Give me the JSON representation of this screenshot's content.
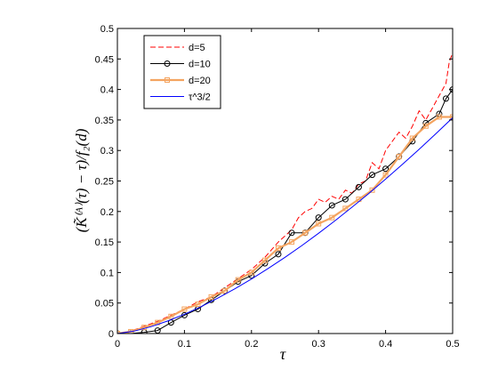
{
  "chart_data": {
    "type": "line",
    "title": "",
    "xlabel": "τ",
    "ylabel": "(K̃⁽ᴬ⁾(τ) − τ)/f₂(d)",
    "xlim": [
      0,
      0.5
    ],
    "ylim": [
      0,
      0.5
    ],
    "xticks": [
      "0",
      "0.1",
      "0.2",
      "0.3",
      "0.4",
      "0.5"
    ],
    "yticks": [
      "0",
      "0.05",
      "0.1",
      "0.15",
      "0.2",
      "0.25",
      "0.3",
      "0.35",
      "0.4",
      "0.45",
      "0.5"
    ],
    "grid": false,
    "legend_position": "top-left",
    "series": [
      {
        "name": "d=5",
        "color": "#ff0000",
        "style": "dashed",
        "x": [
          0,
          0.02,
          0.04,
          0.06,
          0.08,
          0.1,
          0.12,
          0.14,
          0.16,
          0.18,
          0.2,
          0.22,
          0.24,
          0.26,
          0.27,
          0.28,
          0.29,
          0.3,
          0.31,
          0.32,
          0.33,
          0.34,
          0.35,
          0.36,
          0.37,
          0.38,
          0.39,
          0.4,
          0.41,
          0.42,
          0.43,
          0.44,
          0.45,
          0.46,
          0.47,
          0.48,
          0.49,
          0.495,
          0.5
        ],
        "values": [
          0,
          0.004,
          0.012,
          0.02,
          0.03,
          0.04,
          0.052,
          0.06,
          0.075,
          0.09,
          0.105,
          0.125,
          0.15,
          0.17,
          0.19,
          0.2,
          0.205,
          0.22,
          0.215,
          0.225,
          0.22,
          0.235,
          0.23,
          0.245,
          0.25,
          0.28,
          0.27,
          0.3,
          0.315,
          0.33,
          0.32,
          0.34,
          0.365,
          0.35,
          0.37,
          0.39,
          0.41,
          0.445,
          0.46
        ]
      },
      {
        "name": "d=10",
        "color": "#000000",
        "style": "solid-circle-markers",
        "x": [
          0,
          0.02,
          0.04,
          0.06,
          0.08,
          0.1,
          0.12,
          0.14,
          0.16,
          0.18,
          0.2,
          0.22,
          0.24,
          0.26,
          0.28,
          0.3,
          0.32,
          0.34,
          0.36,
          0.38,
          0.4,
          0.42,
          0.44,
          0.46,
          0.48,
          0.49,
          0.5
        ],
        "values": [
          0,
          0.0,
          0.002,
          0.005,
          0.018,
          0.03,
          0.04,
          0.055,
          0.07,
          0.085,
          0.095,
          0.115,
          0.13,
          0.165,
          0.165,
          0.19,
          0.21,
          0.22,
          0.24,
          0.26,
          0.27,
          0.29,
          0.315,
          0.345,
          0.36,
          0.385,
          0.4
        ]
      },
      {
        "name": "d=20",
        "color": "#f4a460",
        "style": "solid-square-markers",
        "x": [
          0,
          0.02,
          0.04,
          0.06,
          0.08,
          0.1,
          0.12,
          0.14,
          0.16,
          0.18,
          0.2,
          0.22,
          0.24,
          0.26,
          0.28,
          0.3,
          0.32,
          0.34,
          0.36,
          0.38,
          0.4,
          0.42,
          0.44,
          0.46,
          0.48,
          0.5
        ],
        "values": [
          0,
          0.003,
          0.01,
          0.018,
          0.028,
          0.04,
          0.048,
          0.06,
          0.07,
          0.088,
          0.1,
          0.12,
          0.14,
          0.15,
          0.165,
          0.18,
          0.19,
          0.205,
          0.22,
          0.235,
          0.26,
          0.29,
          0.32,
          0.34,
          0.355,
          0.355
        ]
      },
      {
        "name": "τ^3/2",
        "color": "#0000ff",
        "style": "solid",
        "x": [
          0,
          0.025,
          0.05,
          0.075,
          0.1,
          0.125,
          0.15,
          0.175,
          0.2,
          0.225,
          0.25,
          0.275,
          0.3,
          0.325,
          0.35,
          0.375,
          0.4,
          0.425,
          0.45,
          0.475,
          0.5
        ],
        "values": [
          0,
          0.004,
          0.0112,
          0.0205,
          0.0316,
          0.0442,
          0.0581,
          0.0732,
          0.0894,
          0.1067,
          0.125,
          0.1442,
          0.1643,
          0.1853,
          0.2071,
          0.2296,
          0.253,
          0.2771,
          0.3019,
          0.3274,
          0.3536
        ]
      }
    ]
  }
}
